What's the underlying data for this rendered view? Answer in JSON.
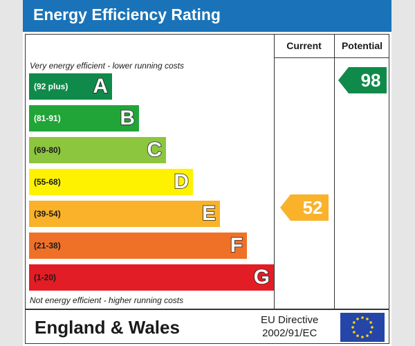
{
  "header": {
    "title": "Energy Efficiency Rating"
  },
  "columns": {
    "current": "Current",
    "potential": "Potential"
  },
  "captions": {
    "top": "Very energy efficient - lower running costs",
    "bottom": "Not energy efficient - higher running costs"
  },
  "chart_data": {
    "type": "bar",
    "title": "Energy Efficiency Rating",
    "bands": [
      {
        "letter": "A",
        "range": "(92 plus)",
        "color": "#0f8a4a",
        "text_color": "#ffffff"
      },
      {
        "letter": "B",
        "range": "(81-91)",
        "color": "#22a538",
        "text_color": "#ffffff"
      },
      {
        "letter": "C",
        "range": "(69-80)",
        "color": "#8cc63e",
        "text_color": "#1a1a1a"
      },
      {
        "letter": "D",
        "range": "(55-68)",
        "color": "#fef200",
        "text_color": "#1a1a1a"
      },
      {
        "letter": "E",
        "range": "(39-54)",
        "color": "#f9b22a",
        "text_color": "#1a1a1a"
      },
      {
        "letter": "F",
        "range": "(21-38)",
        "color": "#ef7128",
        "text_color": "#1a1a1a"
      },
      {
        "letter": "G",
        "range": "(1-20)",
        "color": "#e31d25",
        "text_color": "#1a1a1a"
      }
    ],
    "current": {
      "value": 52,
      "band": "E",
      "color": "#f9b22a"
    },
    "potential": {
      "value": 98,
      "band": "A",
      "color": "#0f8a4a"
    }
  },
  "footer": {
    "region": "England & Wales",
    "directive_line1": "EU Directive",
    "directive_line2": "2002/91/EC",
    "flag_icon": "eu-flag-icon"
  }
}
